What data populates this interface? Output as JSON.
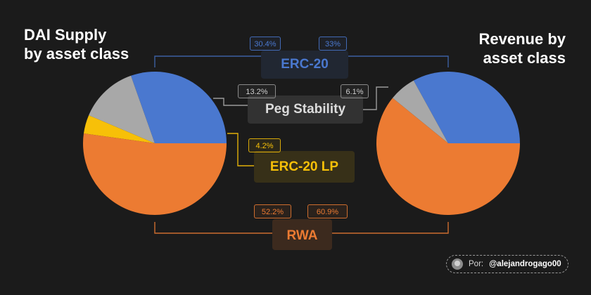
{
  "colors": {
    "background": "#1b1b1b",
    "erc20": "#4a78cf",
    "peg": "#a8a8a8",
    "lp": "#f7c008",
    "rwa": "#ec7b32"
  },
  "chart_data": [
    {
      "type": "pie",
      "title": "DAI Supply by asset class",
      "title_lines": [
        "DAI Supply",
        "by asset class"
      ],
      "slices": [
        {
          "label": "ERC-20",
          "value": 30.4,
          "value_label": "30.4%"
        },
        {
          "label": "Peg Stability",
          "value": 13.2,
          "value_label": "13.2%"
        },
        {
          "label": "ERC-20 LP",
          "value": 4.2,
          "value_label": "4.2%"
        },
        {
          "label": "RWA",
          "value": 52.2,
          "value_label": "52.2%"
        }
      ]
    },
    {
      "type": "pie",
      "title": "Revenue by asset class",
      "title_lines": [
        "Revenue by",
        "asset class"
      ],
      "slices": [
        {
          "label": "ERC-20",
          "value": 33,
          "value_label": "33%"
        },
        {
          "label": "Peg Stability",
          "value": 6.1,
          "value_label": "6.1%"
        },
        {
          "label": "RWA",
          "value": 60.9,
          "value_label": "60.9%"
        }
      ]
    }
  ],
  "categories": {
    "erc20": "ERC-20",
    "peg": "Peg Stability",
    "lp": "ERC-20 LP",
    "rwa": "RWA"
  },
  "credit": {
    "prefix": "Por:",
    "handle": "@alejandrogago00",
    "avatar_icon": "user-avatar"
  }
}
